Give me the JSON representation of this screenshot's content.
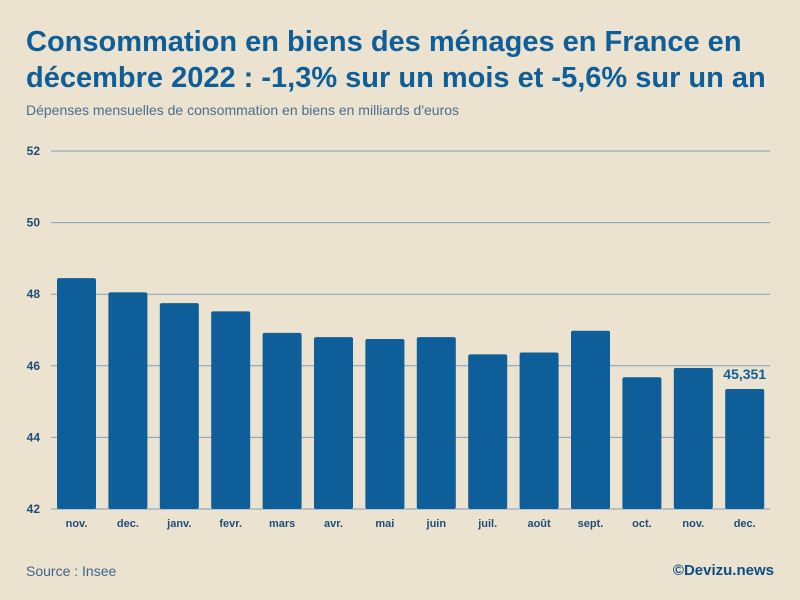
{
  "chart_data": {
    "type": "bar",
    "title": "Consommation en biens des ménages en France en décembre 2022 : -1,3% sur un mois et -5,6% sur un an",
    "subtitle": "Dépenses mensuelles de consommation en biens en milliards d'euros",
    "categories": [
      "nov.",
      "dec.",
      "janv.",
      "fevr.",
      "mars",
      "avr.",
      "mai",
      "juin",
      "juil.",
      "août",
      "sept.",
      "oct.",
      "nov.",
      "dec."
    ],
    "values": [
      48.45,
      48.05,
      47.75,
      47.52,
      46.92,
      46.8,
      46.75,
      46.8,
      46.32,
      46.37,
      46.98,
      45.68,
      45.94,
      45.351
    ],
    "yticks": [
      42,
      44,
      46,
      48,
      50,
      52
    ],
    "ylim": [
      42,
      52
    ],
    "annotation": {
      "index": 13,
      "text": "45,351"
    },
    "xlabel": "",
    "ylabel": "",
    "grid": true,
    "colors": {
      "bar": "#0d5e99",
      "grid": "#7f9fba",
      "text": "#0d5e99",
      "axis_text": "#1f4e79"
    }
  },
  "footer": {
    "source": "Source : Insee",
    "brand": "©Devizu.news"
  }
}
